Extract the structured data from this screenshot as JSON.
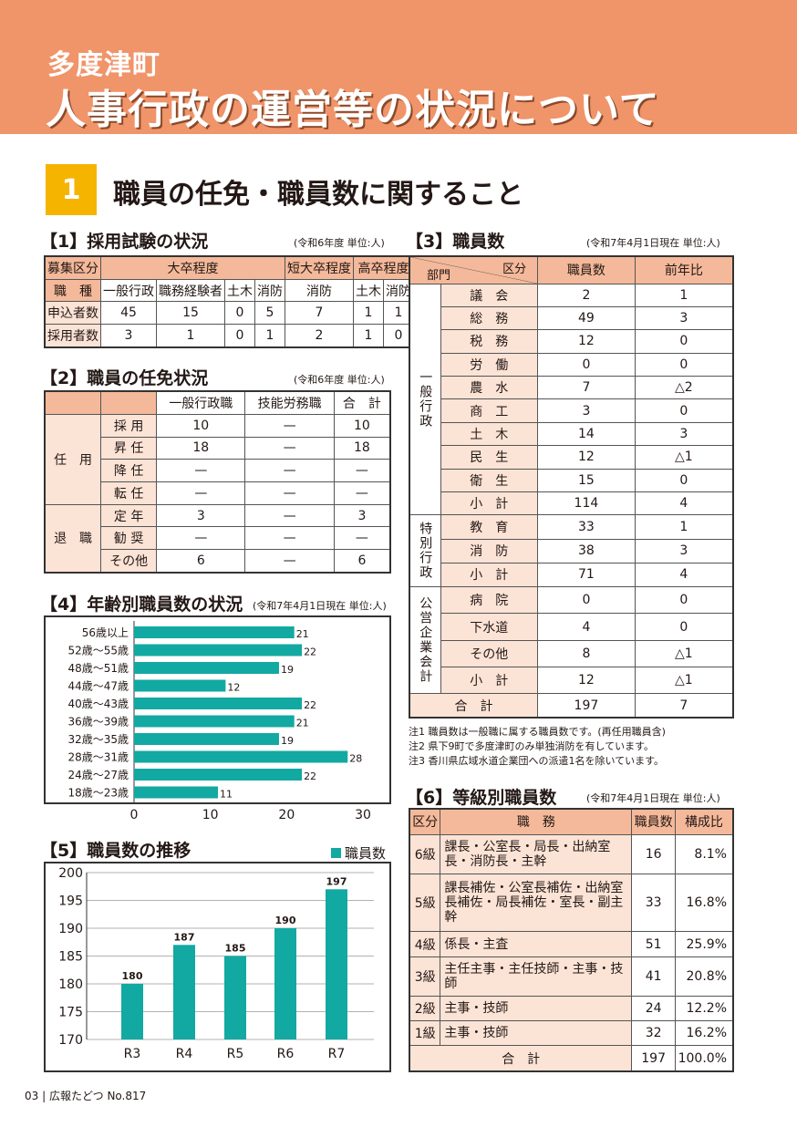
{
  "header": {
    "town": "多度津町",
    "title": "人事行政の運営等の状況について"
  },
  "section": {
    "number": "1",
    "title": "職員の任免・職員数に関すること"
  },
  "t1": {
    "heading": "【1】採用試験の状況",
    "unit": "(令和6年度 単位:人)",
    "row1": [
      "募集区分",
      "大卒程度",
      "短大卒程度",
      "高卒程度"
    ],
    "row2": [
      "職　種",
      "一般行政",
      "職務経験者",
      "土木",
      "消防",
      "消防",
      "土木",
      "消防"
    ],
    "rows": [
      [
        "申込者数",
        "45",
        "15",
        "0",
        "5",
        "7",
        "1",
        "1"
      ],
      [
        "採用者数",
        "3",
        "1",
        "0",
        "1",
        "2",
        "1",
        "0"
      ]
    ]
  },
  "t2": {
    "heading": "【2】職員の任免状況",
    "unit": "(令和6年度 単位:人)",
    "cols": [
      "一般行政職",
      "技能労務職",
      "合　計"
    ],
    "groups": [
      {
        "label": "任　用",
        "rows": [
          [
            "採 用",
            "10",
            "—",
            "10"
          ],
          [
            "昇 任",
            "18",
            "—",
            "18"
          ],
          [
            "降 任",
            "—",
            "—",
            "—"
          ],
          [
            "転 任",
            "—",
            "—",
            "—"
          ]
        ]
      },
      {
        "label": "退　職",
        "rows": [
          [
            "定 年",
            "3",
            "—",
            "3"
          ],
          [
            "勧 奨",
            "—",
            "—",
            "—"
          ],
          [
            "その他",
            "6",
            "—",
            "6"
          ]
        ]
      }
    ]
  },
  "t3": {
    "heading": "【3】職員数",
    "unit": "(令和7年4月1日現在 単位:人)",
    "diag_top": "区分",
    "diag_bottom": "部門",
    "cols": [
      "職員数",
      "前年比"
    ],
    "groups": [
      {
        "label": "一般行政",
        "rows": [
          [
            "議　会",
            "2",
            "1"
          ],
          [
            "総　務",
            "49",
            "3"
          ],
          [
            "税　務",
            "12",
            "0"
          ],
          [
            "労　働",
            "0",
            "0"
          ],
          [
            "農　水",
            "7",
            "△2"
          ],
          [
            "商　工",
            "3",
            "0"
          ],
          [
            "土　木",
            "14",
            "3"
          ],
          [
            "民　生",
            "12",
            "△1"
          ],
          [
            "衛　生",
            "15",
            "0"
          ],
          [
            "小　計",
            "114",
            "4"
          ]
        ]
      },
      {
        "label": "特別行政",
        "rows": [
          [
            "教　育",
            "33",
            "1"
          ],
          [
            "消　防",
            "38",
            "3"
          ],
          [
            "小　計",
            "71",
            "4"
          ]
        ]
      },
      {
        "label": "公営企業会計",
        "rows": [
          [
            "病　院",
            "0",
            "0"
          ],
          [
            "下水道",
            "4",
            "0"
          ],
          [
            "その他",
            "8",
            "△1"
          ],
          [
            "小　計",
            "12",
            "△1"
          ]
        ]
      }
    ],
    "total": [
      "合　計",
      "197",
      "7"
    ],
    "notes": [
      "注1 職員数は一般職に属する職員数です。(再任用職員含)",
      "注2 県下9町で多度津町のみ単独消防を有しています。",
      "注3 香川県広域水道企業団への派遣1名を除いています。"
    ]
  },
  "t6": {
    "heading": "【6】等級別職員数",
    "unit": "(令和7年4月1日現在 単位:人)",
    "cols": [
      "区分",
      "職　務",
      "職員数",
      "構成比"
    ],
    "rows": [
      [
        "6級",
        "課長・公室長・局長・出納室長・消防長・主幹",
        "16",
        "8.1%"
      ],
      [
        "5級",
        "課長補佐・公室長補佐・出納室長補佐・局長補佐・室長・副主幹",
        "33",
        "16.8%"
      ],
      [
        "4級",
        "係長・主査",
        "51",
        "25.9%"
      ],
      [
        "3級",
        "主任主事・主任技師・主事・技師",
        "41",
        "20.8%"
      ],
      [
        "2級",
        "主事・技師",
        "24",
        "12.2%"
      ],
      [
        "1級",
        "主事・技師",
        "32",
        "16.2%"
      ]
    ],
    "total": [
      "合　計",
      "197",
      "100.0%"
    ]
  },
  "chart_data": [
    {
      "type": "bar",
      "orientation": "horizontal",
      "heading": "【4】年齢別職員数の状況",
      "unit": "(令和7年4月1日現在 単位:人)",
      "categories": [
        "56歳以上",
        "52歳～55歳",
        "48歳～51歳",
        "44歳～47歳",
        "40歳～43歳",
        "36歳～39歳",
        "32歳～35歳",
        "28歳～31歳",
        "24歳～27歳",
        "18歳～23歳"
      ],
      "values": [
        21,
        22,
        19,
        12,
        22,
        21,
        19,
        28,
        22,
        11
      ],
      "xlim": [
        0,
        30
      ],
      "xticks": [
        0,
        10,
        20,
        30
      ],
      "color": "#12A9A2"
    },
    {
      "type": "bar",
      "heading": "【5】職員数の推移",
      "legend": "職員数",
      "legend_position": "top-right",
      "categories": [
        "R3",
        "R4",
        "R5",
        "R6",
        "R7"
      ],
      "values": [
        180,
        187,
        185,
        190,
        197
      ],
      "ylim": [
        170,
        200
      ],
      "yticks": [
        170,
        175,
        180,
        185,
        190,
        195,
        200
      ],
      "grid": true,
      "color": "#12A9A2"
    }
  ],
  "footer": {
    "page": "03",
    "sep": "|",
    "magazine": "広報たどつ",
    "issue": "No.817"
  }
}
